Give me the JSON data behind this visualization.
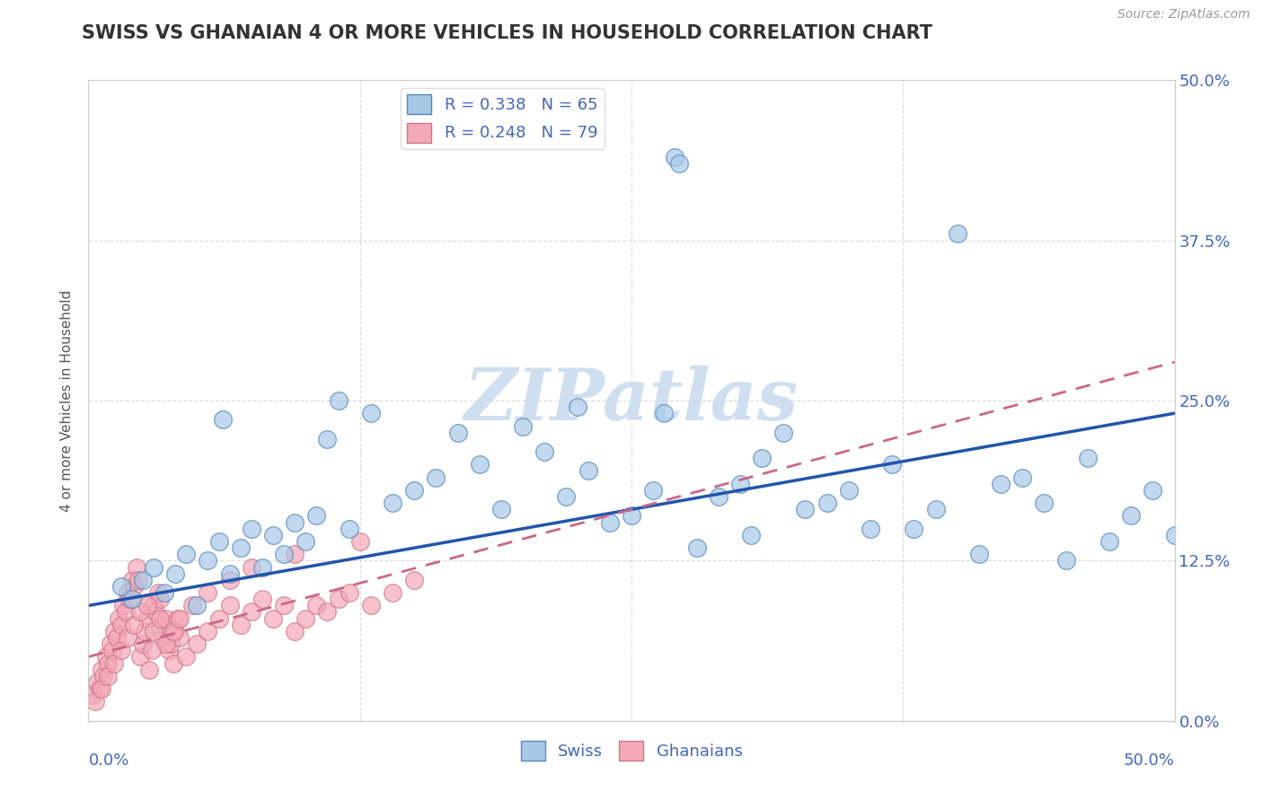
{
  "title": "SWISS VS GHANAIAN 4 OR MORE VEHICLES IN HOUSEHOLD CORRELATION CHART",
  "source": "Source: ZipAtlas.com",
  "ylabel": "4 or more Vehicles in Household",
  "ytick_labels": [
    "0.0%",
    "12.5%",
    "25.0%",
    "37.5%",
    "50.0%"
  ],
  "ytick_values": [
    0.0,
    12.5,
    25.0,
    37.5,
    50.0
  ],
  "xtick_values": [
    0.0,
    12.5,
    25.0,
    37.5,
    50.0
  ],
  "xmin": 0.0,
  "xmax": 50.0,
  "ymin": 0.0,
  "ymax": 50.0,
  "swiss_R": 0.338,
  "swiss_N": 65,
  "ghanaian_R": 0.248,
  "ghanaian_N": 79,
  "swiss_color": "#A8C8E8",
  "swiss_edge_color": "#5588BB",
  "ghanaian_color": "#F4A8B8",
  "ghanaian_edge_color": "#CC7788",
  "swiss_line_color": "#2255AA",
  "ghanaian_line_color": "#CC6688",
  "watermark_color": "#D0DFF0",
  "background_color": "#FFFFFF",
  "title_color": "#333333",
  "axis_label_color": "#4466BB",
  "grid_color": "#CCCCCC",
  "swiss_line_start_y": 9.0,
  "swiss_line_end_y": 24.0,
  "ghanaian_line_start_y": 5.0,
  "ghanaian_line_end_y": 28.0,
  "swiss_x": [
    1.5,
    2.0,
    2.5,
    3.0,
    3.5,
    4.0,
    4.5,
    5.0,
    5.5,
    6.0,
    6.5,
    7.0,
    7.5,
    8.0,
    8.5,
    9.0,
    9.5,
    10.0,
    10.5,
    11.0,
    12.0,
    13.0,
    14.0,
    15.0,
    16.0,
    17.0,
    18.0,
    19.0,
    20.0,
    21.0,
    22.0,
    22.5,
    23.0,
    24.0,
    25.0,
    26.0,
    26.5,
    27.0,
    27.2,
    28.0,
    29.0,
    30.0,
    30.5,
    31.0,
    32.0,
    33.0,
    34.0,
    35.0,
    36.0,
    37.0,
    38.0,
    39.0,
    40.0,
    41.0,
    42.0,
    43.0,
    44.0,
    45.0,
    46.0,
    47.0,
    48.0,
    49.0,
    50.0,
    6.2,
    11.5
  ],
  "swiss_y": [
    10.5,
    9.5,
    11.0,
    12.0,
    10.0,
    11.5,
    13.0,
    9.0,
    12.5,
    14.0,
    11.5,
    13.5,
    15.0,
    12.0,
    14.5,
    13.0,
    15.5,
    14.0,
    16.0,
    22.0,
    15.0,
    24.0,
    17.0,
    18.0,
    19.0,
    22.5,
    20.0,
    16.5,
    23.0,
    21.0,
    17.5,
    24.5,
    19.5,
    15.5,
    16.0,
    18.0,
    24.0,
    44.0,
    43.5,
    13.5,
    17.5,
    18.5,
    14.5,
    20.5,
    22.5,
    16.5,
    17.0,
    18.0,
    15.0,
    20.0,
    15.0,
    16.5,
    38.0,
    13.0,
    18.5,
    19.0,
    17.0,
    12.5,
    20.5,
    14.0,
    16.0,
    18.0,
    14.5,
    23.5,
    25.0
  ],
  "ghanaian_x": [
    0.2,
    0.4,
    0.5,
    0.6,
    0.7,
    0.8,
    0.9,
    1.0,
    1.1,
    1.2,
    1.3,
    1.4,
    1.5,
    1.6,
    1.7,
    1.8,
    1.9,
    2.0,
    2.1,
    2.2,
    2.3,
    2.4,
    2.5,
    2.6,
    2.7,
    2.8,
    2.9,
    3.0,
    3.1,
    3.2,
    3.3,
    3.4,
    3.5,
    3.6,
    3.7,
    3.8,
    3.9,
    4.0,
    4.1,
    4.2,
    4.5,
    5.0,
    5.5,
    6.0,
    6.5,
    7.0,
    7.5,
    8.0,
    8.5,
    9.0,
    9.5,
    10.0,
    10.5,
    11.0,
    11.5,
    12.0,
    13.0,
    14.0,
    15.0,
    0.3,
    0.6,
    0.9,
    1.2,
    1.5,
    1.8,
    2.1,
    2.4,
    2.7,
    3.0,
    3.3,
    3.6,
    3.9,
    4.2,
    4.8,
    5.5,
    6.5,
    7.5,
    9.5,
    12.5
  ],
  "ghanaian_y": [
    2.0,
    3.0,
    2.5,
    4.0,
    3.5,
    5.0,
    4.5,
    6.0,
    5.5,
    7.0,
    6.5,
    8.0,
    7.5,
    9.0,
    8.5,
    10.0,
    9.5,
    11.0,
    10.5,
    12.0,
    11.0,
    5.0,
    6.0,
    7.0,
    8.0,
    4.0,
    5.5,
    9.0,
    8.5,
    10.0,
    9.5,
    6.5,
    7.5,
    8.0,
    5.5,
    6.0,
    4.5,
    7.0,
    8.0,
    6.5,
    5.0,
    6.0,
    7.0,
    8.0,
    9.0,
    7.5,
    8.5,
    9.5,
    8.0,
    9.0,
    7.0,
    8.0,
    9.0,
    8.5,
    9.5,
    10.0,
    9.0,
    10.0,
    11.0,
    1.5,
    2.5,
    3.5,
    4.5,
    5.5,
    6.5,
    7.5,
    8.5,
    9.0,
    7.0,
    8.0,
    6.0,
    7.0,
    8.0,
    9.0,
    10.0,
    11.0,
    12.0,
    13.0,
    14.0
  ]
}
